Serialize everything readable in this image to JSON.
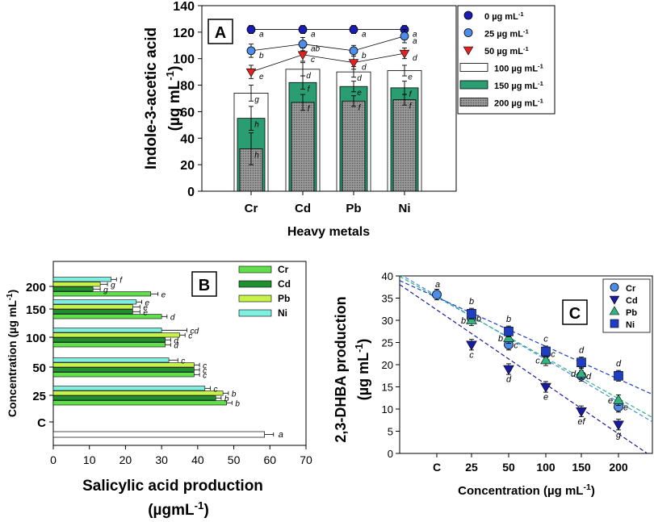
{
  "chart_data": [
    {
      "panel": "A",
      "type": "bar+line",
      "xlabel": "Heavy metals",
      "ylabel": "Indole-3-acetic acid",
      "ylabel_unit": "(µg mL",
      "ylabel_unit_sup": "-1",
      "ylabel_unit_close": ")",
      "ylim": [
        0,
        140
      ],
      "yticks": [
        "0",
        "20",
        "40",
        "60",
        "80",
        "100",
        "120",
        "140"
      ],
      "categories": [
        "Cr",
        "Cd",
        "Pb",
        "Ni"
      ],
      "bar_series": [
        {
          "name": "100",
          "unit": "µg mL",
          "sup": "-1",
          "values": [
            74,
            92,
            90,
            91
          ],
          "errors": [
            6,
            5,
            4,
            4
          ],
          "letters": [
            "g",
            "d",
            "d",
            "e"
          ],
          "color": "#ffffff"
        },
        {
          "name": "150",
          "unit": "µg mL",
          "sup": "-1",
          "values": [
            55,
            82,
            79,
            78
          ],
          "errors": [
            9,
            5,
            4,
            5
          ],
          "letters": [
            "h",
            "f",
            "e",
            "f"
          ],
          "color": "#2a9d73"
        },
        {
          "name": "200",
          "unit": "µg mL",
          "sup": "-1",
          "values": [
            32,
            67,
            68,
            69
          ],
          "errors": [
            12,
            6,
            4,
            4
          ],
          "letters": [
            "h",
            "f",
            "f",
            "f"
          ],
          "color": "#8f8f8f"
        }
      ],
      "line_series": [
        {
          "name": "0",
          "unit": "µg mL",
          "sup": "-1",
          "marker": "circle",
          "color": "#1b1bb5",
          "values": [
            122,
            122,
            122,
            122
          ],
          "errors": [
            3,
            3,
            3,
            3
          ],
          "letters": [
            "a",
            "a",
            "a",
            "a"
          ]
        },
        {
          "name": "25",
          "unit": "µg mL",
          "sup": "-1",
          "marker": "circle",
          "color": "#4d8de8",
          "values": [
            106,
            111,
            106,
            117
          ],
          "errors": [
            5,
            5,
            4,
            5
          ],
          "letters": [
            "b",
            "ab",
            "b",
            "a"
          ]
        },
        {
          "name": "50",
          "unit": "µg mL",
          "sup": "-1",
          "marker": "triangle-down",
          "color": "#e02222",
          "values": [
            90,
            103,
            97,
            104
          ],
          "errors": [
            5,
            5,
            5,
            4
          ],
          "letters": [
            "e",
            "c",
            "d",
            "d"
          ]
        }
      ],
      "legend_order": [
        "0",
        "25",
        "50",
        "100",
        "150",
        "200"
      ],
      "legend_unit": "µg mL",
      "legend_sup": "-1",
      "legend": "top-right"
    },
    {
      "panel": "B",
      "type": "horizontal-bar",
      "xlabel": "Salicylic acid production",
      "xlabel_unit": "(µgmL",
      "xlabel_unit_sup": "-1",
      "xlabel_unit_close": ")",
      "ylabel": "Concentration (µg mL",
      "ylabel_sup": "-1",
      "ylabel_close": ")",
      "xlim": [
        0,
        70
      ],
      "xticks": [
        "0",
        "10",
        "20",
        "30",
        "40",
        "50",
        "60",
        "70"
      ],
      "categories": [
        "C",
        "25",
        "50",
        "100",
        "150",
        "200"
      ],
      "control": {
        "value": 58.5,
        "error": 2.5,
        "letter": "a",
        "color": "#ffffff"
      },
      "series": [
        {
          "name": "Cr",
          "color": "#5fe04a",
          "values": [
            null,
            48,
            39,
            31,
            30,
            27
          ],
          "errors": [
            null,
            1.5,
            1.5,
            1.5,
            1.5,
            2
          ],
          "letters": [
            null,
            "b",
            "c",
            "d",
            "d",
            "e"
          ]
        },
        {
          "name": "Cd",
          "color": "#1f8f30",
          "values": [
            null,
            45,
            39,
            31,
            22,
            11
          ],
          "errors": [
            null,
            1.5,
            1.5,
            1.5,
            2,
            2
          ],
          "letters": [
            null,
            "b",
            "c",
            "d",
            "e",
            "g"
          ]
        },
        {
          "name": "Pb",
          "color": "#c6f24a",
          "values": [
            null,
            47,
            39,
            35,
            22,
            13
          ],
          "errors": [
            null,
            1.5,
            1.5,
            1.5,
            2,
            2
          ],
          "letters": [
            null,
            "b",
            "c",
            "c",
            "e",
            "g"
          ]
        },
        {
          "name": "Ni",
          "color": "#7ff0e0",
          "values": [
            null,
            42,
            32,
            30,
            23,
            16
          ],
          "errors": [
            null,
            1.5,
            2.5,
            7,
            1.5,
            1.5
          ],
          "letters": [
            null,
            "c",
            "c",
            "cd",
            "e",
            "f"
          ]
        }
      ],
      "legend": "top-right"
    },
    {
      "panel": "C",
      "type": "scatter+trendline",
      "xlabel": "Concentration (µg mL",
      "xlabel_sup": "-1",
      "xlabel_close": ")",
      "ylabel": "2,3-DHBA production",
      "ylabel_unit": "(µg mL",
      "ylabel_unit_sup": "-1",
      "ylabel_unit_close": ")",
      "ylim": [
        0,
        40
      ],
      "yticks": [
        "0",
        "5",
        "10",
        "15",
        "20",
        "25",
        "30",
        "35",
        "40"
      ],
      "categories": [
        "C",
        "25",
        "50",
        "100",
        "150",
        "200"
      ],
      "control": {
        "value": 35.8,
        "error": 1.2,
        "letter": "a"
      },
      "series": [
        {
          "name": "Cr",
          "marker": "circle",
          "color": "#4d8de8",
          "values": [
            null,
            30.5,
            24.5,
            22.5,
            17.5,
            10.5
          ],
          "letters": [
            null,
            "b",
            "c",
            "c",
            "d",
            "e"
          ]
        },
        {
          "name": "Cd",
          "marker": "triangle-down",
          "color": "#1a1a9e",
          "values": [
            null,
            24.5,
            19,
            15,
            9.5,
            6.5
          ],
          "letters": [
            null,
            "c",
            "d",
            "e",
            "ef",
            "g"
          ]
        },
        {
          "name": "Pb",
          "marker": "triangle-up",
          "color": "#33b380",
          "values": [
            null,
            30,
            26,
            21,
            18,
            12
          ],
          "letters": [
            null,
            "b",
            "b",
            "c",
            "d",
            "e"
          ]
        },
        {
          "name": "Ni",
          "marker": "square",
          "color": "#1e3fc4",
          "values": [
            null,
            31.5,
            27.5,
            23,
            20.5,
            17.5
          ],
          "letters": [
            null,
            "b",
            "b",
            "c",
            "d",
            "d"
          ]
        }
      ],
      "legend": "top-right"
    }
  ],
  "panel_labels": [
    "A",
    "B",
    "C"
  ]
}
